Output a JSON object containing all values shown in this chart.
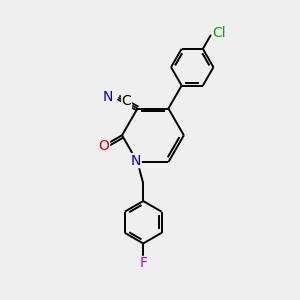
{
  "bg_color": "#efefef",
  "bond_color": "#000000",
  "atom_colors": {
    "N": "#0000cc",
    "O": "#dd0000",
    "Cl": "#00aa00",
    "F": "#cc00cc",
    "C": "#000000"
  },
  "lw": 1.4,
  "fontsize": 10,
  "ring_r": 0.72
}
